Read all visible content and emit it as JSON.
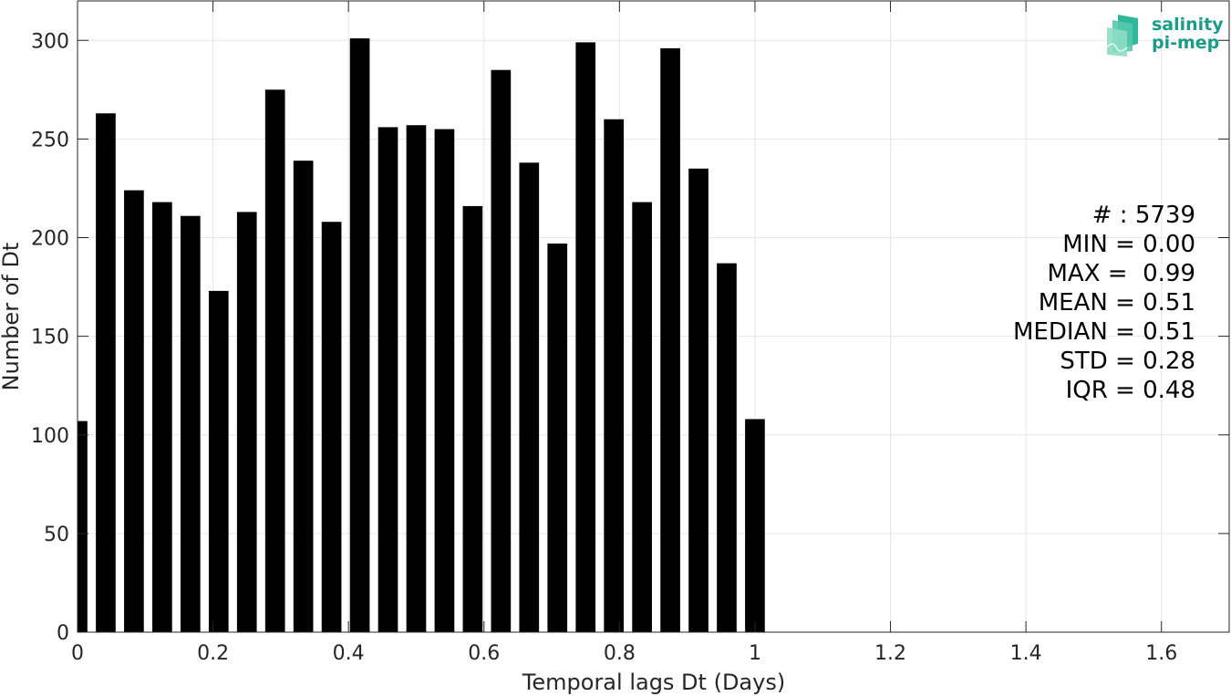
{
  "chart_data": {
    "type": "bar",
    "x": [
      0.0,
      0.04167,
      0.08333,
      0.125,
      0.16667,
      0.20833,
      0.25,
      0.29167,
      0.33333,
      0.375,
      0.41667,
      0.45833,
      0.5,
      0.54167,
      0.58333,
      0.625,
      0.66667,
      0.70833,
      0.75,
      0.79167,
      0.83333,
      0.875,
      0.91667,
      0.95833,
      1.0
    ],
    "values": [
      107,
      263,
      224,
      218,
      211,
      173,
      213,
      275,
      239,
      208,
      301,
      256,
      257,
      255,
      216,
      285,
      238,
      197,
      299,
      260,
      218,
      296,
      235,
      187,
      108
    ],
    "xlabel": "Temporal lags Dt (Days)",
    "ylabel": "Number of Dt",
    "xlim": [
      0,
      1.7
    ],
    "ylim": [
      0,
      320
    ],
    "xticks": [
      0,
      0.2,
      0.4,
      0.6,
      0.8,
      1,
      1.2,
      1.4,
      1.6
    ],
    "xtick_labels": [
      "0",
      "0.2",
      "0.4",
      "0.6",
      "0.8",
      "1",
      "1.2",
      "1.4",
      "1.6"
    ],
    "yticks": [
      0,
      50,
      100,
      150,
      200,
      250,
      300
    ],
    "ytick_labels": [
      "0",
      "50",
      "100",
      "150",
      "200",
      "250",
      "300"
    ],
    "grid": true,
    "bar_color": "#000000",
    "stats": [
      "# : 5739",
      "MIN = 0.00",
      "MAX =  0.99",
      "MEAN = 0.51",
      "MEDIAN = 0.51",
      "STD = 0.28",
      "IQR = 0.48"
    ]
  },
  "logo": {
    "line1": "salinity",
    "line2": "pi-mep",
    "color": "#1a9c88"
  }
}
